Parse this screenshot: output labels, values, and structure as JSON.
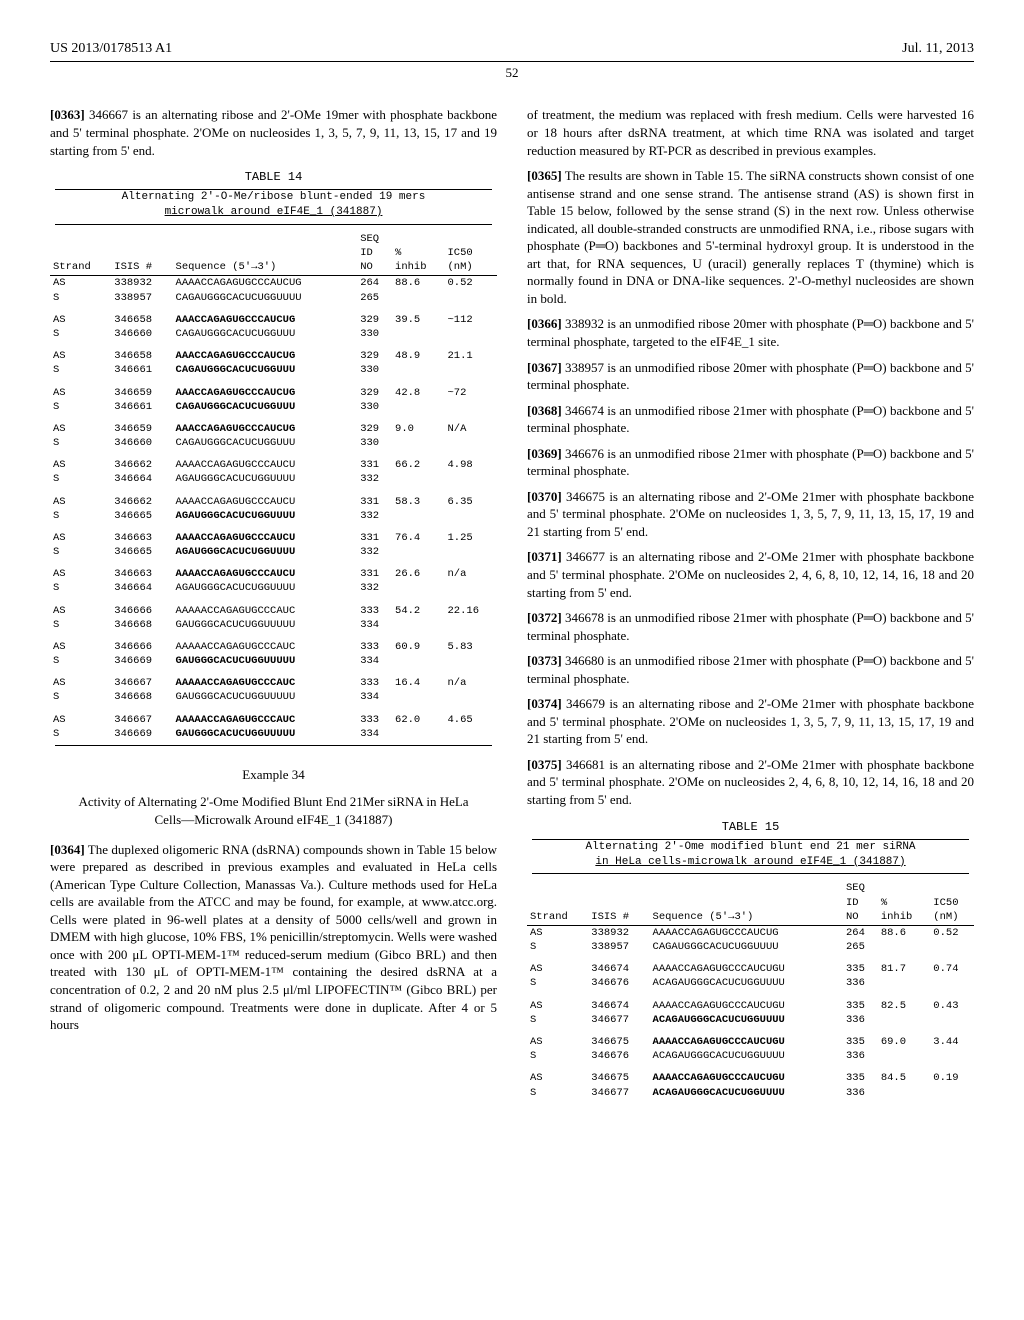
{
  "header": {
    "left": "US 2013/0178513 A1",
    "right": "Jul. 11, 2013"
  },
  "page_number": "52",
  "left_col": {
    "p0363": {
      "num": "[0363]",
      "text": "346667 is an alternating ribose and 2'-OMe 19mer with phosphate backbone and 5' terminal phosphate. 2'OMe on nucleosides 1, 3, 5, 7, 9, 11, 13, 15, 17 and 19 starting from 5' end."
    },
    "table14": {
      "label": "TABLE 14",
      "title_line1": "Alternating 2'-O-Me/ribose blunt-ended 19 mers",
      "title_line2": "microwalk around eIF4E_1 (341887)",
      "head": {
        "strand": "Strand",
        "isis": "ISIS #",
        "seq": "Sequence (5'→3')",
        "seqid": "SEQ\nID\nNO",
        "inhib": "%\ninhib",
        "ic50": "IC50\n(nM)"
      },
      "rows": [
        {
          "strand": "AS",
          "isis": "338932",
          "seq": "AAAACCAGAGUGCCCAUCUG",
          "seqid": "264",
          "inhib": "88.6",
          "ic50": "0.52",
          "bold": false
        },
        {
          "strand": "S",
          "isis": "338957",
          "seq": "CAGAUGGGCACUCUGGUUUU",
          "seqid": "265",
          "inhib": "",
          "ic50": "",
          "bold": false
        },
        {
          "gap": true
        },
        {
          "strand": "AS",
          "isis": "346658",
          "seq": "AAACCAGAGUGCCCAUCUG",
          "seqid": "329",
          "inhib": "39.5",
          "ic50": "~112",
          "bold": true
        },
        {
          "strand": "S",
          "isis": "346660",
          "seq": "CAGAUGGGCACUCUGGUUU",
          "seqid": "330",
          "inhib": "",
          "ic50": "",
          "bold": false
        },
        {
          "gap": true
        },
        {
          "strand": "AS",
          "isis": "346658",
          "seq": "AAACCAGAGUGCCCAUCUG",
          "seqid": "329",
          "inhib": "48.9",
          "ic50": "21.1",
          "bold": true
        },
        {
          "strand": "S",
          "isis": "346661",
          "seq": "CAGAUGGGCACUCUGGUUU",
          "seqid": "330",
          "inhib": "",
          "ic50": "",
          "bold": true
        },
        {
          "gap": true
        },
        {
          "strand": "AS",
          "isis": "346659",
          "seq": "AAACCAGAGUGCCCAUCUG",
          "seqid": "329",
          "inhib": "42.8",
          "ic50": "~72",
          "bold": true
        },
        {
          "strand": "S",
          "isis": "346661",
          "seq": "CAGAUGGGCACUCUGGUUU",
          "seqid": "330",
          "inhib": "",
          "ic50": "",
          "bold": true
        },
        {
          "gap": true
        },
        {
          "strand": "AS",
          "isis": "346659",
          "seq": "AAACCAGAGUGCCCAUCUG",
          "seqid": "329",
          "inhib": "9.0",
          "ic50": "N/A",
          "bold": true
        },
        {
          "strand": "S",
          "isis": "346660",
          "seq": "CAGAUGGGCACUCUGGUUU",
          "seqid": "330",
          "inhib": "",
          "ic50": "",
          "bold": false
        },
        {
          "gap": true
        },
        {
          "strand": "AS",
          "isis": "346662",
          "seq": "AAAACCAGAGUGCCCAUCU",
          "seqid": "331",
          "inhib": "66.2",
          "ic50": "4.98",
          "bold": false
        },
        {
          "strand": "S",
          "isis": "346664",
          "seq": "AGAUGGGCACUCUGGUUUU",
          "seqid": "332",
          "inhib": "",
          "ic50": "",
          "bold": false
        },
        {
          "gap": true
        },
        {
          "strand": "AS",
          "isis": "346662",
          "seq": "AAAACCAGAGUGCCCAUCU",
          "seqid": "331",
          "inhib": "58.3",
          "ic50": "6.35",
          "bold": false
        },
        {
          "strand": "S",
          "isis": "346665",
          "seq": "AGAUGGGCACUCUGGUUUU",
          "seqid": "332",
          "inhib": "",
          "ic50": "",
          "bold": true
        },
        {
          "gap": true
        },
        {
          "strand": "AS",
          "isis": "346663",
          "seq": "AAAACCAGAGUGCCCAUCU",
          "seqid": "331",
          "inhib": "76.4",
          "ic50": "1.25",
          "bold": true
        },
        {
          "strand": "S",
          "isis": "346665",
          "seq": "AGAUGGGCACUCUGGUUUU",
          "seqid": "332",
          "inhib": "",
          "ic50": "",
          "bold": true
        },
        {
          "gap": true
        },
        {
          "strand": "AS",
          "isis": "346663",
          "seq": "AAAACCAGAGUGCCCAUCU",
          "seqid": "331",
          "inhib": "26.6",
          "ic50": "n/a",
          "bold": true
        },
        {
          "strand": "S",
          "isis": "346664",
          "seq": "AGAUGGGCACUCUGGUUUU",
          "seqid": "332",
          "inhib": "",
          "ic50": "",
          "bold": false
        },
        {
          "gap": true
        },
        {
          "strand": "AS",
          "isis": "346666",
          "seq": "AAAAACCAGAGUGCCCAUC",
          "seqid": "333",
          "inhib": "54.2",
          "ic50": "22.16",
          "bold": false
        },
        {
          "strand": "S",
          "isis": "346668",
          "seq": "GAUGGGCACUCUGGUUUUU",
          "seqid": "334",
          "inhib": "",
          "ic50": "",
          "bold": false
        },
        {
          "gap": true
        },
        {
          "strand": "AS",
          "isis": "346666",
          "seq": "AAAAACCAGAGUGCCCAUC",
          "seqid": "333",
          "inhib": "60.9",
          "ic50": "5.83",
          "bold": false
        },
        {
          "strand": "S",
          "isis": "346669",
          "seq": "GAUGGGCACUCUGGUUUUU",
          "seqid": "334",
          "inhib": "",
          "ic50": "",
          "bold": true
        },
        {
          "gap": true
        },
        {
          "strand": "AS",
          "isis": "346667",
          "seq": "AAAAACCAGAGUGCCCAUC",
          "seqid": "333",
          "inhib": "16.4",
          "ic50": "n/a",
          "bold": true
        },
        {
          "strand": "S",
          "isis": "346668",
          "seq": "GAUGGGCACUCUGGUUUUU",
          "seqid": "334",
          "inhib": "",
          "ic50": "",
          "bold": false
        },
        {
          "gap": true
        },
        {
          "strand": "AS",
          "isis": "346667",
          "seq": "AAAAACCAGAGUGCCCAUC",
          "seqid": "333",
          "inhib": "62.0",
          "ic50": "4.65",
          "bold": true
        },
        {
          "strand": "S",
          "isis": "346669",
          "seq": "GAUGGGCACUCUGGUUUUU",
          "seqid": "334",
          "inhib": "",
          "ic50": "",
          "bold": true
        }
      ]
    },
    "example": {
      "label": "Example 34",
      "title": "Activity of Alternating 2'-Ome Modified Blunt End 21Mer siRNA in HeLa Cells—Microwalk Around eIF4E_1 (341887)"
    },
    "p0364": {
      "num": "[0364]",
      "text": "The duplexed oligomeric RNA (dsRNA) compounds shown in Table 15 below were prepared as described in previous examples and evaluated in HeLa cells (American Type Culture Collection, Manassas Va.). Culture methods used for HeLa cells are available from the ATCC and may be found, for example, at www.atcc.org. Cells were plated in 96-well plates at a density of 5000 cells/well and grown in DMEM with high glucose, 10% FBS, 1% penicillin/streptomycin. Wells were washed once with 200 μL OPTI-MEM-1™ reduced-serum medium (Gibco BRL) and then treated with 130 μL of OPTI-MEM-1™ containing the desired dsRNA at a concentration of 0.2, 2 and 20 nM plus 2.5 μl/ml LIPOFECTIN™ (Gibco BRL) per strand of oligomeric compound. Treatments were done in duplicate. After 4 or 5 hours"
    }
  },
  "right_col": {
    "cont": "of treatment, the medium was replaced with fresh medium. Cells were harvested 16 or 18 hours after dsRNA treatment, at which time RNA was isolated and target reduction measured by RT-PCR as described in previous examples.",
    "p0365": {
      "num": "[0365]",
      "text": "The results are shown in Table 15. The siRNA constructs shown consist of one antisense strand and one sense strand. The antisense strand (AS) is shown first in Table 15 below, followed by the sense strand (S) in the next row. Unless otherwise indicated, all double-stranded constructs are unmodified RNA, i.e., ribose sugars with phosphate (P═O) backbones and 5'-terminal hydroxyl group. It is understood in the art that, for RNA sequences, U (uracil) generally replaces T (thymine) which is normally found in DNA or DNA-like sequences. 2'-O-methyl nucleosides are shown in bold."
    },
    "p0366": {
      "num": "[0366]",
      "text": "338932 is an unmodified ribose 20mer with phosphate (P═O) backbone and 5' terminal phosphate, targeted to the eIF4E_1 site."
    },
    "p0367": {
      "num": "[0367]",
      "text": "338957 is an unmodified ribose 20mer with phosphate (P═O) backbone and 5' terminal phosphate."
    },
    "p0368": {
      "num": "[0368]",
      "text": "346674 is an unmodified ribose 21mer with phosphate (P═O) backbone and 5' terminal phosphate."
    },
    "p0369": {
      "num": "[0369]",
      "text": "346676 is an unmodified ribose 21mer with phosphate (P═O) backbone and 5' terminal phosphate."
    },
    "p0370": {
      "num": "[0370]",
      "text": "346675 is an alternating ribose and 2'-OMe 21mer with phosphate backbone and 5' terminal phosphate. 2'OMe on nucleosides 1, 3, 5, 7, 9, 11, 13, 15, 17, 19 and 21 starting from 5' end."
    },
    "p0371": {
      "num": "[0371]",
      "text": "346677 is an alternating ribose and 2'-OMe 21mer with phosphate backbone and 5' terminal phosphate. 2'OMe on nucleosides 2, 4, 6, 8, 10, 12, 14, 16, 18 and 20 starting from 5' end."
    },
    "p0372": {
      "num": "[0372]",
      "text": "346678 is an unmodified ribose 21mer with phosphate (P═O) backbone and 5' terminal phosphate."
    },
    "p0373": {
      "num": "[0373]",
      "text": "346680 is an unmodified ribose 21mer with phosphate (P═O) backbone and 5' terminal phosphate."
    },
    "p0374": {
      "num": "[0374]",
      "text": "346679 is an alternating ribose and 2'-OMe 21mer with phosphate backbone and 5' terminal phosphate. 2'OMe on nucleosides 1, 3, 5, 7, 9, 11, 13, 15, 17, 19 and 21 starting from 5' end."
    },
    "p0375": {
      "num": "[0375]",
      "text": "346681 is an alternating ribose and 2'-OMe 21mer with phosphate backbone and 5' terminal phosphate. 2'OMe on nucleosides 2, 4, 6, 8, 10, 12, 14, 16, 18 and 20 starting from 5' end."
    },
    "table15": {
      "label": "TABLE 15",
      "title_line1": "Alternating 2'-Ome modified blunt end 21 mer siRNA",
      "title_line2": "in HeLa cells-microwalk around eIF4E_1 (341887)",
      "head": {
        "strand": "Strand",
        "isis": "ISIS #",
        "seq": "Sequence (5'→3')",
        "seqid": "SEQ\nID\nNO",
        "inhib": "%\ninhib",
        "ic50": "IC50\n(nM)"
      },
      "rows": [
        {
          "strand": "AS",
          "isis": "338932",
          "seq": "AAAACCAGAGUGCCCAUCUG",
          "seqid": "264",
          "inhib": "88.6",
          "ic50": "0.52",
          "bold": false
        },
        {
          "strand": "S",
          "isis": "338957",
          "seq": "CAGAUGGGCACUCUGGUUUU",
          "seqid": "265",
          "inhib": "",
          "ic50": "",
          "bold": false
        },
        {
          "gap": true
        },
        {
          "strand": "AS",
          "isis": "346674",
          "seq": "AAAACCAGAGUGCCCAUCUGU",
          "seqid": "335",
          "inhib": "81.7",
          "ic50": "0.74",
          "bold": false
        },
        {
          "strand": "S",
          "isis": "346676",
          "seq": "ACAGAUGGGCACUCUGGUUUU",
          "seqid": "336",
          "inhib": "",
          "ic50": "",
          "bold": false
        },
        {
          "gap": true
        },
        {
          "strand": "AS",
          "isis": "346674",
          "seq": "AAAACCAGAGUGCCCAUCUGU",
          "seqid": "335",
          "inhib": "82.5",
          "ic50": "0.43",
          "bold": false
        },
        {
          "strand": "S",
          "isis": "346677",
          "seq": "ACAGAUGGGCACUCUGGUUUU",
          "seqid": "336",
          "inhib": "",
          "ic50": "",
          "bold": true
        },
        {
          "gap": true
        },
        {
          "strand": "AS",
          "isis": "346675",
          "seq": "AAAACCAGAGUGCCCAUCUGU",
          "seqid": "335",
          "inhib": "69.0",
          "ic50": "3.44",
          "bold": true
        },
        {
          "strand": "S",
          "isis": "346676",
          "seq": "ACAGAUGGGCACUCUGGUUUU",
          "seqid": "336",
          "inhib": "",
          "ic50": "",
          "bold": false
        },
        {
          "gap": true
        },
        {
          "strand": "AS",
          "isis": "346675",
          "seq": "AAAACCAGAGUGCCCAUCUGU",
          "seqid": "335",
          "inhib": "84.5",
          "ic50": "0.19",
          "bold": true
        },
        {
          "strand": "S",
          "isis": "346677",
          "seq": "ACAGAUGGGCACUCUGGUUUU",
          "seqid": "336",
          "inhib": "",
          "ic50": "",
          "bold": true
        }
      ]
    }
  }
}
